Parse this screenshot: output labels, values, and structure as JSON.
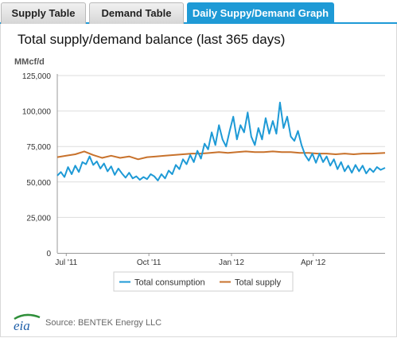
{
  "tabs": [
    {
      "label": "Supply Table",
      "active": false
    },
    {
      "label": "Demand Table",
      "active": false
    },
    {
      "label": "Daily Suppy/Demand Graph",
      "active": true
    }
  ],
  "chart_title": "Total supply/demand balance (last 365 days)",
  "unit_label": "MMcf/d",
  "source": "Source: BENTEK Energy LLC",
  "logo_text": "eia",
  "colors": {
    "accent": "#1e9ad6",
    "consumption": "#1e9ad6",
    "supply": "#c8722c",
    "grid": "#dddddd"
  },
  "chart_data": {
    "type": "line",
    "title": "Total supply/demand balance (last 365 days)",
    "ylabel": "MMcf/d",
    "xlabel": "",
    "ylim": [
      0,
      125000
    ],
    "yticks": [
      "0",
      "25,000",
      "50,000",
      "75,000",
      "100,000",
      "125,000"
    ],
    "xlim": [
      "2011-06-21",
      "2012-06-20"
    ],
    "xticks": [
      {
        "date": "2011-07-01",
        "label": "Jul '11"
      },
      {
        "date": "2011-10-01",
        "label": "Oct '11"
      },
      {
        "date": "2012-01-01",
        "label": "Jan '12"
      },
      {
        "date": "2012-04-01",
        "label": "Apr '12"
      }
    ],
    "legend_position": "bottom",
    "series": [
      {
        "name": "Total consumption",
        "color": "#1e9ad6",
        "points": [
          [
            "2011-06-21",
            54500
          ],
          [
            "2011-06-25",
            57000
          ],
          [
            "2011-06-29",
            53500
          ],
          [
            "2011-07-03",
            60500
          ],
          [
            "2011-07-07",
            55500
          ],
          [
            "2011-07-11",
            61500
          ],
          [
            "2011-07-15",
            57000
          ],
          [
            "2011-07-19",
            64000
          ],
          [
            "2011-07-23",
            62500
          ],
          [
            "2011-07-27",
            68000
          ],
          [
            "2011-07-31",
            62000
          ],
          [
            "2011-08-04",
            64500
          ],
          [
            "2011-08-08",
            59500
          ],
          [
            "2011-08-12",
            63000
          ],
          [
            "2011-08-16",
            57500
          ],
          [
            "2011-08-20",
            61000
          ],
          [
            "2011-08-24",
            55000
          ],
          [
            "2011-08-28",
            59500
          ],
          [
            "2011-09-01",
            56000
          ],
          [
            "2011-09-05",
            53000
          ],
          [
            "2011-09-09",
            56500
          ],
          [
            "2011-09-13",
            52500
          ],
          [
            "2011-09-17",
            54000
          ],
          [
            "2011-09-21",
            51500
          ],
          [
            "2011-09-25",
            53500
          ],
          [
            "2011-09-29",
            52000
          ],
          [
            "2011-10-03",
            55500
          ],
          [
            "2011-10-07",
            54000
          ],
          [
            "2011-10-11",
            51000
          ],
          [
            "2011-10-15",
            55500
          ],
          [
            "2011-10-19",
            52500
          ],
          [
            "2011-10-23",
            58000
          ],
          [
            "2011-10-27",
            55500
          ],
          [
            "2011-10-31",
            62000
          ],
          [
            "2011-11-04",
            59000
          ],
          [
            "2011-11-08",
            66000
          ],
          [
            "2011-11-12",
            62500
          ],
          [
            "2011-11-16",
            69000
          ],
          [
            "2011-11-20",
            64000
          ],
          [
            "2011-11-24",
            72000
          ],
          [
            "2011-11-28",
            66500
          ],
          [
            "2011-12-02",
            77000
          ],
          [
            "2011-12-06",
            73000
          ],
          [
            "2011-12-10",
            85000
          ],
          [
            "2011-12-14",
            76000
          ],
          [
            "2011-12-18",
            90000
          ],
          [
            "2011-12-22",
            80000
          ],
          [
            "2011-12-26",
            75000
          ],
          [
            "2011-12-30",
            86000
          ],
          [
            "2012-01-03",
            96000
          ],
          [
            "2012-01-07",
            80000
          ],
          [
            "2012-01-11",
            90000
          ],
          [
            "2012-01-15",
            85000
          ],
          [
            "2012-01-19",
            99000
          ],
          [
            "2012-01-23",
            82000
          ],
          [
            "2012-01-27",
            76000
          ],
          [
            "2012-01-31",
            88000
          ],
          [
            "2012-02-04",
            80000
          ],
          [
            "2012-02-08",
            95000
          ],
          [
            "2012-02-12",
            84000
          ],
          [
            "2012-02-16",
            93000
          ],
          [
            "2012-02-20",
            84000
          ],
          [
            "2012-02-24",
            106000
          ],
          [
            "2012-02-28",
            88000
          ],
          [
            "2012-03-03",
            96000
          ],
          [
            "2012-03-07",
            82000
          ],
          [
            "2012-03-11",
            79000
          ],
          [
            "2012-03-15",
            86000
          ],
          [
            "2012-03-19",
            76000
          ],
          [
            "2012-03-23",
            69000
          ],
          [
            "2012-03-27",
            65000
          ],
          [
            "2012-03-31",
            70000
          ],
          [
            "2012-04-04",
            63500
          ],
          [
            "2012-04-08",
            70000
          ],
          [
            "2012-04-12",
            64000
          ],
          [
            "2012-04-16",
            68000
          ],
          [
            "2012-04-20",
            61500
          ],
          [
            "2012-04-24",
            66000
          ],
          [
            "2012-04-28",
            59000
          ],
          [
            "2012-05-02",
            64000
          ],
          [
            "2012-05-06",
            57500
          ],
          [
            "2012-05-10",
            61500
          ],
          [
            "2012-05-14",
            56500
          ],
          [
            "2012-05-18",
            62000
          ],
          [
            "2012-05-22",
            57500
          ],
          [
            "2012-05-26",
            61500
          ],
          [
            "2012-05-30",
            56000
          ],
          [
            "2012-06-03",
            59500
          ],
          [
            "2012-06-07",
            57000
          ],
          [
            "2012-06-11",
            60500
          ],
          [
            "2012-06-15",
            58500
          ],
          [
            "2012-06-20",
            60000
          ]
        ]
      },
      {
        "name": "Total supply",
        "color": "#c8722c",
        "points": [
          [
            "2011-06-21",
            67500
          ],
          [
            "2011-07-01",
            68500
          ],
          [
            "2011-07-11",
            69500
          ],
          [
            "2011-07-21",
            71500
          ],
          [
            "2011-07-31",
            69000
          ],
          [
            "2011-08-10",
            67000
          ],
          [
            "2011-08-20",
            68500
          ],
          [
            "2011-08-30",
            67000
          ],
          [
            "2011-09-09",
            68000
          ],
          [
            "2011-09-19",
            66000
          ],
          [
            "2011-09-29",
            67500
          ],
          [
            "2011-10-09",
            68000
          ],
          [
            "2011-10-19",
            68500
          ],
          [
            "2011-10-29",
            69000
          ],
          [
            "2011-11-08",
            69500
          ],
          [
            "2011-11-18",
            70000
          ],
          [
            "2011-11-28",
            70000
          ],
          [
            "2011-12-08",
            70500
          ],
          [
            "2011-12-18",
            71000
          ],
          [
            "2011-12-28",
            70500
          ],
          [
            "2012-01-07",
            71000
          ],
          [
            "2012-01-17",
            71500
          ],
          [
            "2012-01-27",
            71000
          ],
          [
            "2012-02-06",
            71000
          ],
          [
            "2012-02-16",
            71500
          ],
          [
            "2012-02-26",
            71000
          ],
          [
            "2012-03-07",
            71000
          ],
          [
            "2012-03-17",
            70500
          ],
          [
            "2012-03-27",
            70500
          ],
          [
            "2012-04-06",
            70000
          ],
          [
            "2012-04-16",
            70000
          ],
          [
            "2012-04-26",
            69500
          ],
          [
            "2012-05-06",
            70000
          ],
          [
            "2012-05-16",
            69500
          ],
          [
            "2012-05-26",
            70000
          ],
          [
            "2012-06-05",
            70000
          ],
          [
            "2012-06-20",
            70500
          ]
        ]
      }
    ]
  }
}
